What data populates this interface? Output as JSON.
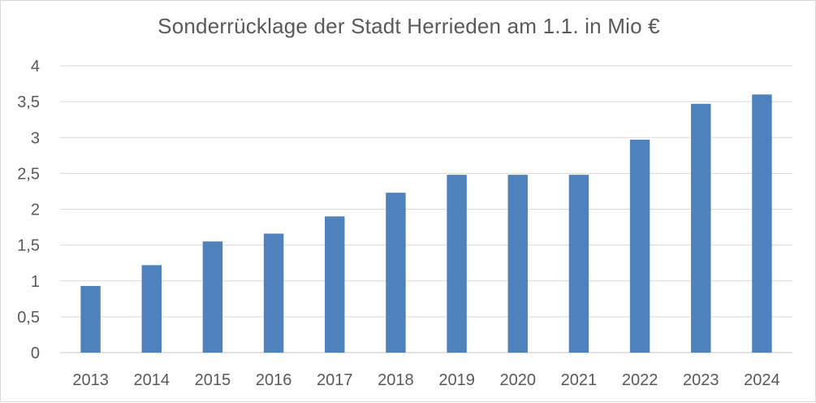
{
  "chart_data": {
    "type": "bar",
    "title": "Sonderrücklage der Stadt Herrieden am 1.1. in Mio €",
    "xlabel": "",
    "ylabel": "",
    "categories": [
      "2013",
      "2014",
      "2015",
      "2016",
      "2017",
      "2018",
      "2019",
      "2020",
      "2021",
      "2022",
      "2023",
      "2024"
    ],
    "values": [
      0.93,
      1.22,
      1.55,
      1.66,
      1.9,
      2.23,
      2.48,
      2.48,
      2.48,
      2.97,
      3.47,
      3.6
    ],
    "ylim": [
      0,
      4
    ],
    "yticks": [
      "0",
      "0,5",
      "1",
      "1,5",
      "2",
      "2,5",
      "3",
      "3,5",
      "4"
    ],
    "grid": true,
    "legend": "none",
    "bar_color": "#4f81bd",
    "grid_color": "#d9d9d9",
    "text_color": "#595959"
  }
}
